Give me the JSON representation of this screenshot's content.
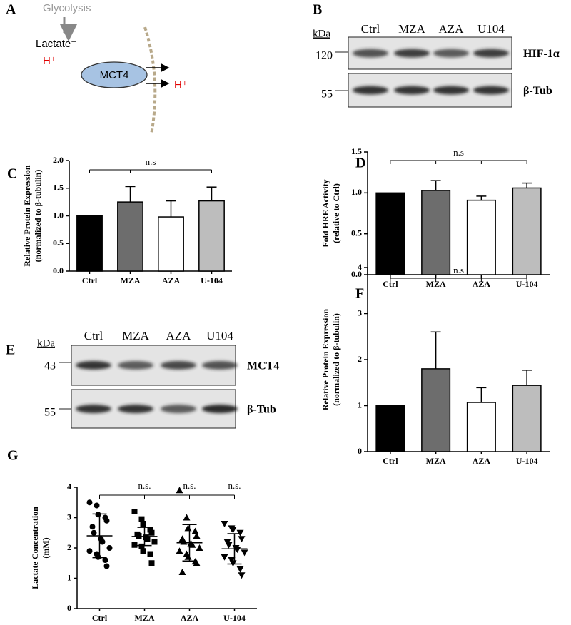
{
  "panel_a": {
    "label": "A",
    "glycolysis": "Glycolysis",
    "lactate": "Lactate⁻",
    "proton_in": "H⁺",
    "transporter": "MCT4",
    "proton_out": "H⁺"
  },
  "blots": [
    {
      "label": "B",
      "unit": "kDa",
      "lanes": [
        "Ctrl",
        "MZA",
        "AZA",
        "U104"
      ],
      "rows": [
        {
          "marker": "120",
          "name": "HIF-1α"
        },
        {
          "marker": "55",
          "name": "β-Tub"
        }
      ]
    },
    {
      "label": "E",
      "unit": "kDa",
      "lanes": [
        "Ctrl",
        "MZA",
        "AZA",
        "U104"
      ],
      "rows": [
        {
          "marker": "43",
          "name": "MCT4"
        },
        {
          "marker": "55",
          "name": "β-Tub"
        }
      ]
    }
  ],
  "chart_data": [
    {
      "type": "bar",
      "panel_label": "C",
      "ylabel": [
        "Relative Protein Expression",
        "(normalized to β-tubulin)"
      ],
      "categories": [
        "Ctrl",
        "MZA",
        "AZA",
        "U-104"
      ],
      "values": [
        1.0,
        1.25,
        0.98,
        1.27
      ],
      "errors": [
        null,
        0.28,
        0.29,
        0.25
      ],
      "colors": [
        "#000000",
        "#6d6d6d",
        "#ffffff",
        "#bdbdbd"
      ],
      "ylim": [
        0,
        2
      ],
      "yticks": [
        {
          "value": 0,
          "label": "0.0"
        },
        {
          "value": 0.5,
          "label": "0.5"
        },
        {
          "value": 1,
          "label": "1.0"
        },
        {
          "value": 1.5,
          "label": "1.5"
        },
        {
          "value": 2,
          "label": "2.0"
        }
      ],
      "annotation": "n.s"
    },
    {
      "type": "bar",
      "panel_label": "D",
      "ylabel": [
        "Fold HRE Activity",
        "(relative to Ctrl)"
      ],
      "categories": [
        "Ctrl",
        "MZA",
        "AZA",
        "U-104"
      ],
      "values": [
        1.0,
        1.03,
        0.91,
        1.06
      ],
      "errors": [
        null,
        0.12,
        0.05,
        0.06
      ],
      "colors": [
        "#000000",
        "#6d6d6d",
        "#ffffff",
        "#bdbdbd"
      ],
      "ylim": [
        0,
        1.5
      ],
      "yticks": [
        {
          "value": 0,
          "label": "0.0"
        },
        {
          "value": 0.5,
          "label": "0.5"
        },
        {
          "value": 1,
          "label": "1.0"
        },
        {
          "value": 1.5,
          "label": "1.5"
        }
      ],
      "annotation": "n.s"
    },
    {
      "type": "bar",
      "panel_label": "F",
      "ylabel": [
        "Relative Protein Expression",
        "(normalized to β-tubulin)"
      ],
      "categories": [
        "Ctrl",
        "MZA",
        "AZA",
        "U-104"
      ],
      "values": [
        1.0,
        1.8,
        1.07,
        1.44
      ],
      "errors": [
        null,
        0.8,
        0.32,
        0.33
      ],
      "colors": [
        "#000000",
        "#6d6d6d",
        "#ffffff",
        "#bdbdbd"
      ],
      "ylim": [
        0,
        4
      ],
      "yticks": [
        0,
        1,
        2,
        3,
        4
      ],
      "annotation": "n.s"
    },
    {
      "type": "scatter",
      "panel_label": "G",
      "ylabel": [
        "Lactate Concentration",
        "(mM)"
      ],
      "categories": [
        "Ctrl",
        "MZA",
        "AZA",
        "U-104"
      ],
      "markers": [
        "circle",
        "square",
        "triangle",
        "triangle-down"
      ],
      "points": [
        [
          3.5,
          3.4,
          3.1,
          3.0,
          2.9,
          2.7,
          2.5,
          2.3,
          2.2,
          2.0,
          1.9,
          1.8,
          1.7,
          1.6,
          1.4
        ],
        [
          3.2,
          2.95,
          2.8,
          2.6,
          2.5,
          2.45,
          2.4,
          2.35,
          2.3,
          2.2,
          2.1,
          2.05,
          1.9,
          1.8,
          1.5
        ],
        [
          3.9,
          3.0,
          2.65,
          2.55,
          2.4,
          2.3,
          2.2,
          2.15,
          2.1,
          2.0,
          1.9,
          1.8,
          1.7,
          1.55,
          1.5,
          1.2
        ],
        [
          2.8,
          2.65,
          2.6,
          2.5,
          2.3,
          2.2,
          2.1,
          2.0,
          1.95,
          1.85,
          1.7,
          1.6,
          1.5,
          1.3,
          1.1
        ]
      ],
      "means": [
        2.4,
        2.38,
        2.17,
        1.97
      ],
      "sds": [
        0.72,
        0.3,
        0.6,
        0.5
      ],
      "ylim": [
        0,
        4
      ],
      "yticks": [
        0,
        1,
        2,
        3,
        4
      ],
      "annotations": [
        "n.s.",
        "n.s.",
        "n.s."
      ]
    }
  ]
}
